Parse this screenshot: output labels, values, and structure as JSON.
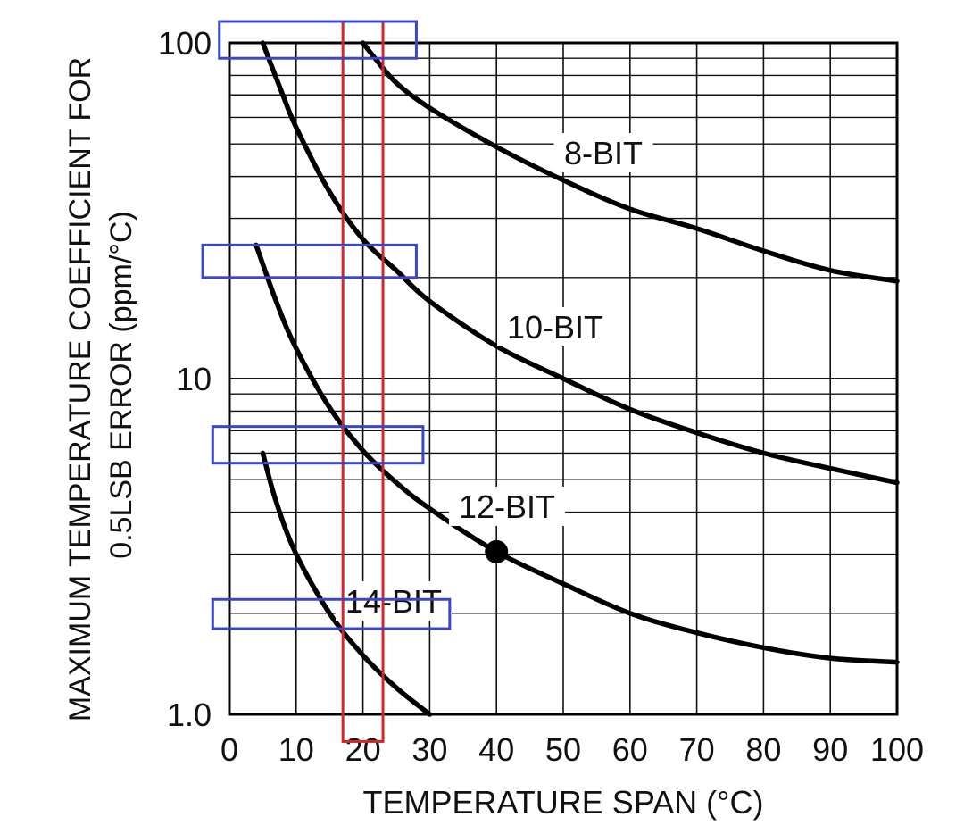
{
  "chart_data": {
    "type": "line",
    "title": "",
    "xlabel": "TEMPERATURE SPAN (°C)",
    "ylabel_line1": "MAXIMUM TEMPERATURE COEFFICIENT FOR",
    "ylabel_line2": "0.5LSB ERROR (ppm/°C)",
    "x_scale": "linear",
    "y_scale": "log",
    "xlim": [
      0,
      100
    ],
    "ylim": [
      1,
      100
    ],
    "x_ticks": [
      0,
      10,
      20,
      30,
      40,
      50,
      60,
      70,
      80,
      90,
      100
    ],
    "x_tick_labels": [
      "0",
      "10",
      "20",
      "30",
      "40",
      "50",
      "60",
      "70",
      "80",
      "90",
      "100"
    ],
    "y_ticks": [
      1,
      10,
      100
    ],
    "y_tick_labels": [
      "1.0",
      "10",
      "100"
    ],
    "grid": true,
    "series": [
      {
        "name": "8-BIT",
        "x": [
          20,
          22,
          25,
          30,
          40,
          50,
          60,
          70,
          80,
          90,
          100
        ],
        "y": [
          100,
          89,
          76,
          64,
          49,
          39,
          32,
          28,
          24,
          21,
          19.5
        ]
      },
      {
        "name": "10-BIT",
        "x": [
          5,
          8,
          10,
          15,
          20,
          25,
          30,
          40,
          50,
          60,
          70,
          80,
          90,
          100
        ],
        "y": [
          100,
          70,
          56,
          36,
          26,
          21,
          17,
          12.5,
          10,
          8.1,
          6.9,
          6,
          5.4,
          4.9
        ]
      },
      {
        "name": "12-BIT",
        "x": [
          4,
          7,
          10,
          15,
          20,
          25,
          30,
          40,
          50,
          60,
          70,
          80,
          90,
          100
        ],
        "y": [
          25,
          17,
          12.3,
          8.2,
          6.1,
          4.9,
          4.1,
          3.05,
          2.45,
          2.0,
          1.75,
          1.58,
          1.47,
          1.43
        ]
      },
      {
        "name": "14-BIT",
        "x": [
          5,
          7,
          10,
          15,
          20,
          25,
          30
        ],
        "y": [
          6,
          4.3,
          3.0,
          2.0,
          1.5,
          1.2,
          1.0
        ]
      }
    ],
    "annotations": [
      {
        "type": "marker",
        "series": "12-BIT",
        "x": 40,
        "y": 3.05
      }
    ],
    "highlight_boxes": [
      {
        "color": "#d62728",
        "x_range": [
          17,
          23
        ],
        "y_range": [
          0.83,
          100
        ]
      },
      {
        "color": "#3b46c9",
        "x_range": [
          -1.5,
          28
        ],
        "y_range": [
          90,
          100
        ]
      },
      {
        "color": "#3b46c9",
        "x_range": [
          -4,
          28
        ],
        "y_range": [
          20,
          25
        ]
      },
      {
        "color": "#3b46c9",
        "x_range": [
          -2.5,
          29
        ],
        "y_range": [
          5.6,
          7.2
        ]
      },
      {
        "color": "#3b46c9",
        "x_range": [
          -2.5,
          33
        ],
        "y_range": [
          1.8,
          2.2
        ]
      }
    ]
  }
}
